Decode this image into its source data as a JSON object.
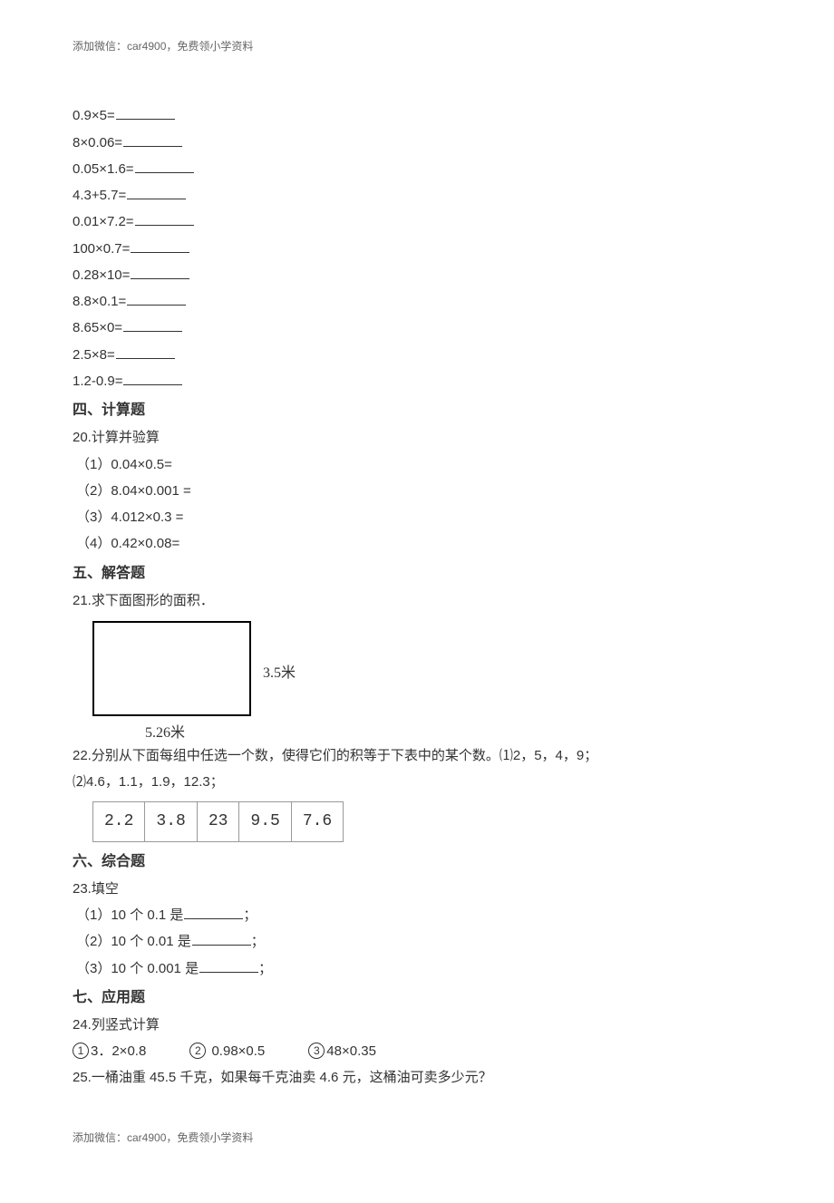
{
  "header_note": "添加微信：car4900，免费领小学资料",
  "footer_note": "添加微信：car4900，免费领小学资料",
  "calc_lines": [
    "0.9×5=",
    "8×0.06=",
    "0.05×1.6=",
    "4.3+5.7=",
    "0.01×7.2=",
    "100×0.7=",
    "0.28×10=",
    "8.8×0.1=",
    "8.65×0=",
    "2.5×8=",
    "1.2-0.9="
  ],
  "sec4": {
    "title": "四、计算题",
    "q20_lead": "20.计算并验算",
    "items": [
      "（1）0.04×0.5=",
      "（2）8.04×0.001 =",
      "（3）4.012×0.3 =",
      "（4）0.42×0.08="
    ]
  },
  "sec5": {
    "title": "五、解答题",
    "q21": "21.求下面图形的面积．",
    "rect_right": "3.5米",
    "rect_bottom": "5.26米",
    "q22_a": "22.分别从下面每组中任选一个数，使得它们的积等于下表中的某个数。⑴2，5，4，9；",
    "q22_b": "⑵4.6，1.1，1.9，12.3；",
    "table_cells": [
      "2.2",
      "3.8",
      "23",
      "9.5",
      "7.6"
    ]
  },
  "sec6": {
    "title": "六、综合题",
    "q23_lead": "23.填空",
    "items_prefix": [
      "（1）10 个 0.1 是",
      "（2）10 个 0.01 是",
      "（3）10 个 0.001 是"
    ],
    "suffix": "；"
  },
  "sec7": {
    "title": "七、应用题",
    "q24_lead": "24.列竖式计算",
    "q24_items": [
      {
        "num": "1",
        "text": "3．2×0.8"
      },
      {
        "num": "2",
        "text": " 0.98×0.5"
      },
      {
        "num": "3",
        "text": "48×0.35"
      }
    ],
    "q25": "25.一桶油重 45.5 千克，如果每千克油卖 4.6 元，这桶油可卖多少元？"
  }
}
